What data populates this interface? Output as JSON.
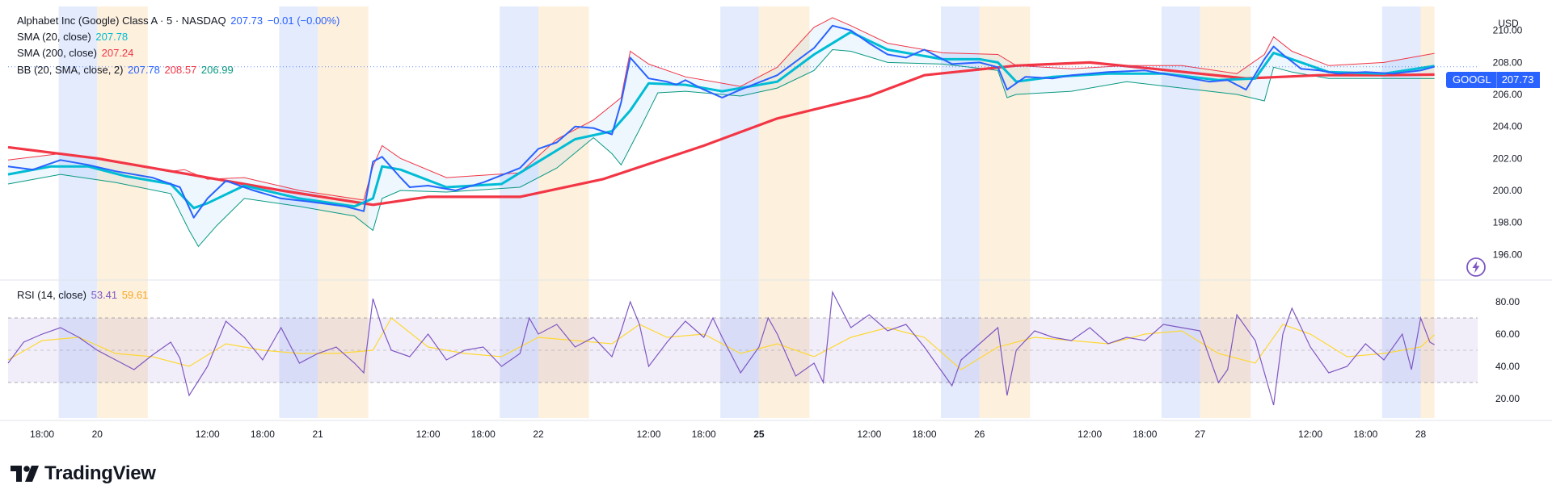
{
  "legend": {
    "main": {
      "name": "Alphabet Inc (Google) Class A · 5 · NASDAQ",
      "price": "207.73",
      "change": "−0.01 (−0.00%)"
    },
    "sma20": {
      "name": "SMA (20, close)",
      "value": "207.78"
    },
    "sma200": {
      "name": "SMA (200, close)",
      "value": "207.24"
    },
    "bb": {
      "name": "BB (20, SMA, close, 2)",
      "basis": "207.78",
      "upper": "208.57",
      "lower": "206.99"
    },
    "rsi": {
      "name": "RSI (14, close)",
      "value": "53.41",
      "ma": "59.61"
    }
  },
  "currency": "USD",
  "price_tag": {
    "symbol": "GOOGL",
    "value": "207.73"
  },
  "brand": {
    "name": "TradingView"
  },
  "colors": {
    "price": "#2962ff",
    "sma20": "#00bcd4",
    "sma200": "#f23645",
    "bb_upper": "#f23645",
    "bb_lower": "#089981",
    "bb_fill": "#2196f3",
    "rsi": "#7e57c2",
    "rsi_ma": "#fdd835",
    "premarket": "#e3ebfd",
    "afterhours": "#fdf0dd"
  },
  "chart_data": [
    {
      "type": "line",
      "title": "Alphabet Inc (Google) Class A · 5 · NASDAQ",
      "ylim": [
        194.5,
        211.5
      ],
      "y_ticks": [
        "210.00",
        "208.00",
        "206.00",
        "204.00",
        "202.00",
        "200.00",
        "198.00",
        "196.00"
      ],
      "x_ticks": [
        "18:00",
        "20",
        "12:00",
        "18:00",
        "21",
        "12:00",
        "18:00",
        "22",
        "12:00",
        "18:00",
        "25",
        "12:00",
        "18:00",
        "26",
        "12:00",
        "18:00",
        "27",
        "12:00",
        "18:00",
        "28"
      ],
      "x_time": [
        -6,
        0,
        12,
        18,
        24,
        36,
        42,
        48,
        60,
        66,
        72,
        84,
        90,
        96,
        108,
        114,
        120,
        132,
        138,
        144
      ],
      "sessions": [
        {
          "kind": "pre",
          "start": -4.2,
          "end": 0.0
        },
        {
          "kind": "post",
          "start": 0.0,
          "end": 5.5
        },
        {
          "kind": "pre",
          "start": 19.8,
          "end": 24.0
        },
        {
          "kind": "post",
          "start": 24.0,
          "end": 29.5
        },
        {
          "kind": "pre",
          "start": 43.8,
          "end": 48.0
        },
        {
          "kind": "post",
          "start": 48.0,
          "end": 53.5
        },
        {
          "kind": "pre",
          "start": 67.8,
          "end": 72.0
        },
        {
          "kind": "post",
          "start": 72.0,
          "end": 77.5
        },
        {
          "kind": "pre",
          "start": 91.8,
          "end": 96.0
        },
        {
          "kind": "post",
          "start": 96.0,
          "end": 101.5
        },
        {
          "kind": "pre",
          "start": 115.8,
          "end": 120.0
        },
        {
          "kind": "post",
          "start": 120.0,
          "end": 125.5
        },
        {
          "kind": "pre",
          "start": 139.8,
          "end": 144.0
        },
        {
          "kind": "post",
          "start": 144.0,
          "end": 145.5
        }
      ],
      "series": [
        {
          "name": "Alphabet Inc (Google) Class A",
          "x": [
            -9.7,
            -7,
            -4,
            -1,
            2,
            6,
            9,
            10.5,
            12,
            14,
            17,
            20,
            23,
            27,
            29,
            30,
            31,
            33,
            34,
            36,
            39,
            42,
            46,
            48,
            50,
            52,
            54,
            56,
            57,
            58,
            60,
            62,
            63,
            64,
            66,
            68,
            70,
            74,
            78,
            80,
            82,
            84,
            86,
            88,
            90,
            93,
            96,
            98,
            99,
            101,
            104,
            106,
            110,
            114,
            118,
            121,
            123,
            125,
            127,
            128,
            129,
            131,
            133,
            135,
            138,
            141,
            144,
            145.5
          ],
          "y": [
            201.5,
            201.3,
            201.9,
            201.6,
            201.2,
            200.8,
            200.2,
            198.3,
            199.5,
            200.6,
            200.0,
            199.5,
            199.3,
            199.0,
            198.7,
            201.8,
            202.1,
            200.8,
            200.2,
            200.3,
            200.0,
            200.5,
            201.4,
            202.6,
            203.0,
            204.0,
            203.9,
            203.5,
            205.5,
            208.3,
            207.0,
            206.8,
            206.6,
            206.9,
            206.3,
            205.8,
            206.3,
            207.2,
            208.9,
            210.3,
            210.0,
            209.2,
            208.5,
            208.3,
            208.8,
            207.9,
            208.0,
            207.7,
            206.3,
            207.1,
            207.0,
            207.2,
            207.4,
            207.5,
            207.1,
            206.8,
            206.9,
            206.3,
            208.2,
            209.0,
            208.5,
            207.6,
            207.5,
            207.3,
            207.4,
            207.3,
            207.5,
            207.73
          ]
        },
        {
          "name": "SMA (20, close)",
          "x": [
            -9.7,
            -5,
            -1,
            3,
            8,
            10.5,
            12,
            16,
            22,
            28,
            30,
            31,
            33,
            38,
            44,
            48,
            52,
            56,
            58,
            60,
            64,
            68,
            74,
            78,
            82,
            86,
            92,
            96,
            98,
            100,
            104,
            110,
            116,
            122,
            126,
            128,
            130,
            134,
            140,
            145.5
          ],
          "y": [
            201.0,
            201.5,
            201.5,
            200.9,
            200.4,
            198.9,
            199.2,
            200.3,
            199.5,
            199.0,
            199.5,
            201.5,
            201.3,
            200.2,
            200.4,
            201.8,
            203.2,
            203.7,
            205.0,
            206.7,
            206.6,
            206.2,
            206.8,
            208.5,
            209.9,
            208.8,
            208.2,
            208.2,
            208.0,
            206.8,
            207.1,
            207.3,
            207.3,
            206.9,
            207.0,
            208.6,
            208.2,
            207.4,
            207.3,
            207.78
          ]
        },
        {
          "name": "SMA (200, close)",
          "x": [
            -9.7,
            0,
            10,
            20,
            30,
            36,
            46,
            55,
            66,
            74,
            84,
            90,
            100,
            108,
            115,
            120,
            125,
            133,
            140,
            145.5
          ],
          "y": [
            202.7,
            202.0,
            201.0,
            200.0,
            199.1,
            199.6,
            199.6,
            200.7,
            202.8,
            204.5,
            205.9,
            207.2,
            207.8,
            208.0,
            207.6,
            207.3,
            207.0,
            207.2,
            207.2,
            207.24
          ]
        },
        {
          "name": "BB upper",
          "x": [
            -9.7,
            -4,
            2,
            8,
            9.5,
            12,
            16,
            22,
            29,
            30,
            31,
            33,
            38,
            46,
            50,
            54,
            57,
            58,
            60,
            64,
            70,
            74,
            78,
            80,
            82,
            86,
            92,
            98,
            100,
            106,
            112,
            118,
            124,
            127,
            128,
            130,
            134,
            140,
            145.5
          ],
          "y": [
            201.9,
            202.3,
            201.8,
            201.2,
            201.3,
            200.7,
            200.8,
            200.0,
            199.4,
            201.5,
            202.8,
            202.0,
            200.8,
            201.1,
            203.2,
            204.4,
            205.8,
            208.7,
            207.9,
            207.1,
            206.5,
            207.7,
            210.2,
            210.8,
            210.3,
            209.2,
            208.6,
            208.5,
            207.8,
            207.6,
            207.8,
            207.8,
            207.3,
            208.5,
            209.6,
            208.7,
            207.8,
            208.0,
            208.57
          ]
        },
        {
          "name": "BB lower",
          "x": [
            -9.7,
            -4,
            2,
            8,
            10,
            11,
            13,
            16,
            22,
            28,
            30,
            31,
            33,
            38,
            46,
            50,
            54,
            56,
            57,
            59,
            61,
            64,
            70,
            74,
            78,
            80,
            82,
            86,
            92,
            98,
            99,
            100,
            106,
            112,
            118,
            124,
            127,
            128,
            130,
            134,
            140,
            145.5
          ],
          "y": [
            200.4,
            201.0,
            200.5,
            199.8,
            197.5,
            196.5,
            197.8,
            199.5,
            199.0,
            198.4,
            197.5,
            199.5,
            200.0,
            199.9,
            200.2,
            201.4,
            203.3,
            202.3,
            201.6,
            203.8,
            206.1,
            206.2,
            205.9,
            206.4,
            207.5,
            208.8,
            208.7,
            208.0,
            207.9,
            207.5,
            205.8,
            206.0,
            206.2,
            206.8,
            206.4,
            206.0,
            205.6,
            207.7,
            207.4,
            207.0,
            207.0,
            206.99
          ]
        }
      ]
    },
    {
      "type": "line",
      "title": "RSI (14, close)",
      "ylim": [
        8,
        92
      ],
      "y_ticks": [
        "80.00",
        "60.00",
        "40.00",
        "20.00"
      ],
      "bands": {
        "upper": 70,
        "middle": 50,
        "lower": 30
      },
      "series": [
        {
          "name": "RSI (14, close)",
          "x": [
            -9.7,
            -8,
            -6,
            -4,
            -2,
            0,
            2,
            4,
            6,
            8,
            9,
            10,
            12,
            14,
            16,
            18,
            20,
            22,
            24,
            26,
            28,
            29,
            30,
            31,
            32,
            34,
            36,
            38,
            40,
            42,
            44,
            46,
            47,
            48,
            50,
            52,
            54,
            56,
            57,
            58,
            59,
            60,
            62,
            64,
            66,
            67,
            68,
            70,
            72,
            73,
            74,
            76,
            78,
            79,
            80,
            82,
            84,
            86,
            88,
            90,
            92,
            93,
            94,
            96,
            98,
            99,
            100,
            102,
            104,
            106,
            108,
            110,
            112,
            114,
            116,
            118,
            120,
            122,
            123,
            124,
            126,
            128,
            129,
            130,
            132,
            134,
            136,
            138,
            140,
            142,
            143,
            144,
            145,
            145.5
          ],
          "y": [
            42,
            55,
            60,
            64,
            58,
            50,
            44,
            38,
            47,
            55,
            45,
            22,
            40,
            68,
            58,
            44,
            64,
            42,
            48,
            52,
            42,
            36,
            82,
            64,
            50,
            46,
            60,
            44,
            50,
            52,
            40,
            48,
            70,
            60,
            66,
            52,
            58,
            46,
            62,
            80,
            66,
            40,
            55,
            68,
            58,
            70,
            58,
            36,
            52,
            70,
            60,
            34,
            42,
            30,
            86,
            64,
            72,
            62,
            66,
            52,
            36,
            28,
            44,
            54,
            64,
            22,
            50,
            62,
            58,
            56,
            64,
            54,
            58,
            56,
            66,
            64,
            62,
            30,
            38,
            72,
            56,
            16,
            60,
            76,
            52,
            36,
            40,
            54,
            44,
            60,
            38,
            70,
            55,
            53.41
          ]
        },
        {
          "name": "RSI MA",
          "x": [
            -9.7,
            -6,
            -2,
            2,
            6,
            10,
            14,
            18,
            22,
            26,
            30,
            32,
            36,
            40,
            44,
            48,
            52,
            56,
            59,
            62,
            66,
            70,
            74,
            78,
            82,
            86,
            90,
            94,
            98,
            102,
            106,
            110,
            114,
            118,
            122,
            126,
            129,
            132,
            136,
            140,
            144,
            145.5
          ],
          "y": [
            44,
            56,
            58,
            48,
            46,
            40,
            54,
            50,
            48,
            48,
            50,
            70,
            52,
            48,
            46,
            58,
            56,
            54,
            66,
            58,
            60,
            48,
            54,
            46,
            58,
            64,
            58,
            38,
            52,
            58,
            56,
            54,
            60,
            62,
            48,
            42,
            66,
            60,
            46,
            48,
            52,
            59.61
          ]
        }
      ]
    }
  ]
}
